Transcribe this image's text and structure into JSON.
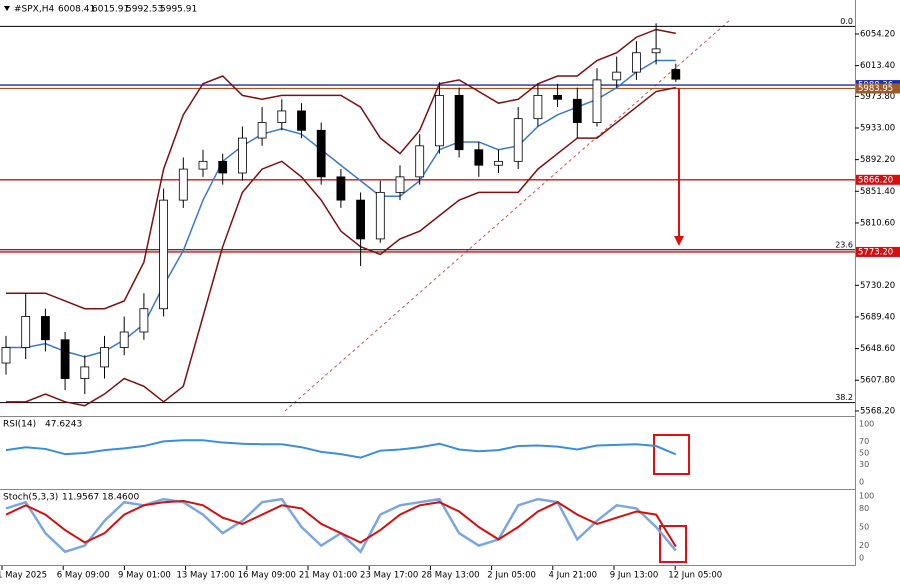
{
  "chart_data": {
    "type": "candlestick",
    "symbol": "#SPX,H4",
    "ohlc": [
      6008.41,
      6015.91,
      5992.53,
      5995.91
    ],
    "open": [
      5630,
      5650,
      5690,
      5660,
      5610,
      5625,
      5650,
      5670,
      5700,
      5840,
      5880,
      5890,
      5875,
      5920,
      5940,
      5955,
      5930,
      5870,
      5840,
      5790,
      5850,
      5870,
      5910,
      5975,
      5905,
      5885,
      5890,
      5945,
      5975,
      5970,
      5940,
      5995,
      6005,
      6030
    ],
    "high": [
      5665,
      5720,
      5700,
      5670,
      5640,
      5665,
      5690,
      5720,
      5855,
      5895,
      5905,
      5900,
      5935,
      5960,
      5970,
      5965,
      5940,
      5880,
      5850,
      5865,
      5885,
      5925,
      5992,
      5985,
      5915,
      5905,
      5960,
      5990,
      5990,
      5985,
      6010,
      6025,
      6045,
      6068
    ],
    "low": [
      5615,
      5635,
      5645,
      5595,
      5590,
      5610,
      5640,
      5660,
      5690,
      5830,
      5870,
      5860,
      5865,
      5910,
      5930,
      5920,
      5860,
      5830,
      5755,
      5785,
      5840,
      5860,
      5900,
      5895,
      5870,
      5875,
      5880,
      5935,
      5960,
      5920,
      5935,
      5985,
      5995,
      6015
    ],
    "close": [
      5650,
      5690,
      5660,
      5610,
      5625,
      5650,
      5670,
      5700,
      5840,
      5880,
      5890,
      5875,
      5920,
      5940,
      5955,
      5930,
      5870,
      5840,
      5790,
      5850,
      5870,
      5910,
      5975,
      5905,
      5885,
      5890,
      5945,
      5975,
      5970,
      5940,
      5995,
      6005,
      6030,
      6035
    ],
    "series": [
      {
        "name": "upper",
        "color": "#7b1010",
        "values": [
          5720,
          5720,
          5720,
          5710,
          5700,
          5700,
          5710,
          5760,
          5880,
          5950,
          5990,
          6000,
          5975,
          5970,
          5975,
          5975,
          5975,
          5975,
          5960,
          5920,
          5900,
          5930,
          5990,
          5995,
          5980,
          5965,
          5970,
          5990,
          6000,
          6000,
          6020,
          6030,
          6050,
          6060,
          6055
        ]
      },
      {
        "name": "middle",
        "color": "#3a78c9",
        "values": [
          5650,
          5650,
          5655,
          5645,
          5638,
          5645,
          5660,
          5680,
          5730,
          5775,
          5840,
          5890,
          5910,
          5925,
          5932,
          5925,
          5905,
          5885,
          5865,
          5845,
          5845,
          5865,
          5905,
          5915,
          5915,
          5905,
          5910,
          5935,
          5950,
          5960,
          5970,
          5985,
          6005,
          6020,
          6020
        ]
      },
      {
        "name": "lower",
        "color": "#7b1010",
        "values": [
          5580,
          5580,
          5590,
          5580,
          5575,
          5590,
          5610,
          5600,
          5580,
          5600,
          5690,
          5780,
          5850,
          5880,
          5890,
          5870,
          5840,
          5800,
          5780,
          5770,
          5790,
          5800,
          5820,
          5840,
          5850,
          5850,
          5850,
          5880,
          5900,
          5920,
          5920,
          5940,
          5960,
          5980,
          5985
        ]
      }
    ],
    "ylim": [
      5563,
      6098
    ],
    "yticks": [
      {
        "value": 6054.2,
        "label": "6054.20"
      },
      {
        "value": 6013.4,
        "label": "6013.40"
      },
      {
        "value": 5973.8,
        "label": "5973.80"
      },
      {
        "value": 5933,
        "label": "5933.00"
      },
      {
        "value": 5892.2,
        "label": "5892.20"
      },
      {
        "value": 5851.4,
        "label": "5851.40"
      },
      {
        "value": 5810.6,
        "label": "5810.60"
      },
      {
        "value": 5730.2,
        "label": "5730.20"
      },
      {
        "value": 5689.4,
        "label": "5689.40"
      },
      {
        "value": 5648.6,
        "label": "5648.60"
      },
      {
        "value": 5607.8,
        "label": "5607.80"
      },
      {
        "value": 5568.2,
        "label": "5568.20"
      }
    ],
    "levels": [
      {
        "value": 5988.36,
        "label": "5988.36",
        "color": "#1c2fa8"
      },
      {
        "value": 5983.95,
        "label": "5983.95",
        "color": "#9a5a2a"
      },
      {
        "value": 5866.2,
        "label": "5866.20",
        "color": "#d21010"
      },
      {
        "value": 5773.2,
        "label": "5773.20",
        "color": "#d21010"
      }
    ],
    "fib": [
      {
        "value": 6064,
        "label": "0.0"
      },
      {
        "value": 5776,
        "label": "23.6"
      },
      {
        "value": 5579,
        "label": "38.2"
      }
    ],
    "xlabels": [
      "1 May 2025",
      "6 May 09:00",
      "9 May 01:00",
      "13 May 17:00",
      "16 May 09:00",
      "21 May 01:00",
      "23 May 17:00",
      "28 May 13:00",
      "2 Jun 05:00",
      "4 Jun 21:00",
      "9 Jun 13:00",
      "12 Jun 05:00"
    ],
    "rsi": {
      "label": "RSI(14)",
      "value": 47.6243,
      "color": "#3a8fd8",
      "values": [
        55,
        60,
        57,
        48,
        50,
        55,
        58,
        62,
        70,
        72,
        72,
        68,
        66,
        65,
        65,
        60,
        52,
        48,
        42,
        54,
        56,
        60,
        66,
        56,
        53,
        55,
        62,
        63,
        61,
        56,
        63,
        64,
        65,
        62
      ],
      "ticks": [
        100,
        70,
        50,
        30,
        0
      ]
    },
    "stoch": {
      "label": "Stoch(5,3,3)",
      "values": [
        11.9567,
        18.46
      ],
      "value_labels": [
        "11.9567",
        "18.4600"
      ],
      "main": [
        80,
        90,
        40,
        10,
        20,
        60,
        90,
        85,
        95,
        90,
        70,
        40,
        60,
        90,
        95,
        50,
        20,
        40,
        10,
        70,
        85,
        90,
        95,
        40,
        20,
        30,
        85,
        95,
        90,
        30,
        60,
        85,
        80,
        50
      ],
      "signal": [
        70,
        85,
        70,
        45,
        25,
        40,
        70,
        85,
        90,
        92,
        85,
        65,
        55,
        70,
        85,
        80,
        55,
        40,
        25,
        45,
        70,
        85,
        90,
        75,
        50,
        30,
        50,
        75,
        90,
        70,
        55,
        65,
        75,
        70
      ],
      "main_color": "#7aa7e0",
      "signal_color": "#d21010",
      "ticks": [
        100,
        80,
        50,
        20,
        0
      ]
    }
  }
}
